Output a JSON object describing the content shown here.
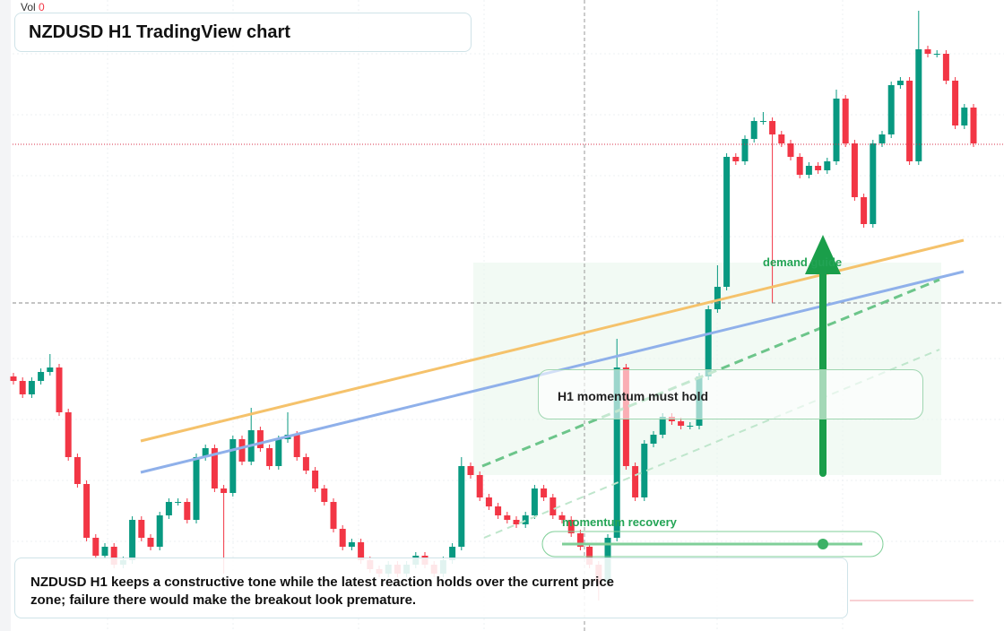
{
  "chart_data": {
    "type": "candlestick",
    "title": "NZDUSD H1 TradingView chart",
    "volume_label": "Vol",
    "volume_value": 0,
    "annotations": [
      "H1 momentum must hold",
      "demand guide",
      "momentum recovery"
    ],
    "note": "NZDUSD H1 keeps a constructive tone while the latest reaction holds over the current price zone; failure there would make the breakout look premature.",
    "up_color": "#089981",
    "down_color": "#f23645",
    "ylim": [
      0,
      704
    ],
    "open": [
      284,
      279,
      264,
      279,
      289,
      294,
      244,
      194,
      164,
      104,
      84,
      94,
      74,
      79,
      124,
      104,
      94,
      129,
      144,
      144,
      124,
      194,
      204,
      159,
      154,
      214,
      189,
      224,
      204,
      184,
      214,
      219,
      194,
      179,
      159,
      144,
      114,
      94,
      99,
      79,
      69,
      64,
      74,
      64,
      74,
      84,
      74,
      64,
      79,
      94,
      184,
      174,
      149,
      139,
      129,
      124,
      119,
      129,
      159,
      149,
      129,
      124,
      109,
      94,
      74,
      54,
      104,
      294,
      184,
      149,
      209,
      219,
      239,
      234,
      229,
      229,
      284,
      359,
      384,
      529,
      524,
      549,
      569,
      569,
      554,
      544,
      529,
      509,
      519,
      514,
      524,
      594,
      544,
      484,
      454,
      544,
      554,
      609,
      614,
      524,
      649,
      644,
      644,
      614,
      564,
      584
    ],
    "high": [
      288,
      283,
      283,
      293,
      309,
      298,
      248,
      198,
      168,
      108,
      98,
      98,
      83,
      128,
      128,
      108,
      133,
      148,
      148,
      148,
      198,
      208,
      208,
      163,
      218,
      218,
      249,
      228,
      208,
      218,
      244,
      223,
      198,
      183,
      163,
      148,
      118,
      103,
      103,
      83,
      73,
      78,
      78,
      78,
      88,
      88,
      78,
      83,
      98,
      194,
      188,
      178,
      153,
      143,
      133,
      128,
      133,
      163,
      163,
      153,
      133,
      128,
      113,
      98,
      78,
      108,
      326,
      298,
      188,
      213,
      223,
      243,
      243,
      238,
      233,
      288,
      363,
      408,
      533,
      533,
      553,
      573,
      579,
      573,
      558,
      548,
      533,
      523,
      523,
      528,
      604,
      598,
      548,
      488,
      548,
      558,
      613,
      618,
      618,
      692,
      653,
      648,
      648,
      618,
      588,
      588
    ],
    "low": [
      275,
      260,
      260,
      275,
      285,
      240,
      190,
      160,
      100,
      80,
      80,
      70,
      70,
      75,
      100,
      90,
      90,
      125,
      140,
      120,
      120,
      190,
      155,
      64,
      150,
      185,
      185,
      200,
      180,
      180,
      210,
      190,
      175,
      155,
      140,
      110,
      90,
      90,
      75,
      65,
      60,
      60,
      60,
      60,
      70,
      70,
      60,
      60,
      75,
      90,
      170,
      145,
      135,
      125,
      120,
      115,
      115,
      125,
      145,
      125,
      120,
      105,
      90,
      70,
      34,
      50,
      100,
      180,
      145,
      145,
      205,
      215,
      230,
      225,
      225,
      225,
      280,
      355,
      380,
      520,
      520,
      545,
      565,
      366,
      540,
      525,
      505,
      505,
      510,
      510,
      520,
      540,
      480,
      450,
      450,
      540,
      550,
      605,
      520,
      520,
      640,
      640,
      610,
      560,
      560,
      540
    ],
    "close": [
      279,
      264,
      279,
      289,
      294,
      244,
      194,
      164,
      104,
      84,
      94,
      74,
      79,
      124,
      104,
      94,
      129,
      144,
      144,
      124,
      194,
      204,
      159,
      154,
      214,
      189,
      224,
      204,
      184,
      214,
      219,
      194,
      179,
      159,
      144,
      114,
      94,
      99,
      79,
      69,
      64,
      74,
      64,
      74,
      84,
      74,
      64,
      79,
      94,
      184,
      174,
      149,
      139,
      129,
      124,
      119,
      129,
      159,
      149,
      129,
      124,
      109,
      94,
      74,
      54,
      104,
      294,
      184,
      149,
      209,
      219,
      239,
      234,
      229,
      229,
      284,
      359,
      384,
      529,
      524,
      549,
      569,
      569,
      554,
      544,
      529,
      509,
      519,
      514,
      524,
      594,
      544,
      484,
      454,
      544,
      554,
      609,
      614,
      524,
      649,
      644,
      644,
      614,
      564,
      584,
      544
    ]
  }
}
